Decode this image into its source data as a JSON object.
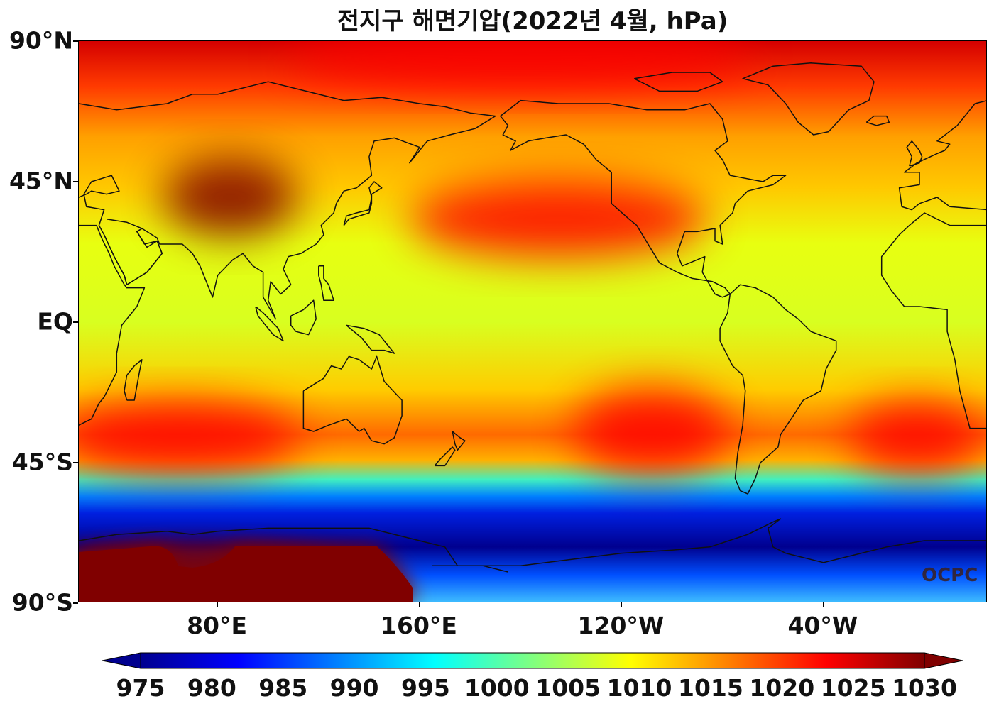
{
  "title": "전지구 해면기압(2022년 4월, hPa)",
  "watermark": "OCPC",
  "latitude_labels": [
    {
      "label": "90°N",
      "lat": 90
    },
    {
      "label": "45°N",
      "lat": 45
    },
    {
      "label": "EQ",
      "lat": 0
    },
    {
      "label": "45°S",
      "lat": -45
    },
    {
      "label": "90°S",
      "lat": -90
    }
  ],
  "longitude_labels": [
    {
      "label": "80°E",
      "lon": 80
    },
    {
      "label": "160°E",
      "lon": 160
    },
    {
      "label": "120°W",
      "lon": 240
    },
    {
      "label": "40°W",
      "lon": 320
    }
  ],
  "map_extent": {
    "lon_min": 25,
    "lon_max": 385,
    "lat_min": -90,
    "lat_max": 90
  },
  "colorbar": {
    "min": 975,
    "max": 1030,
    "extend": "both",
    "tick_labels": [
      "975",
      "980",
      "985",
      "990",
      "995",
      "1000",
      "1005",
      "1010",
      "1015",
      "1020",
      "1025",
      "1030"
    ],
    "colors": [
      "#00008f",
      "#0000ff",
      "#0080ff",
      "#00ffff",
      "#80ff80",
      "#ffff00",
      "#ff8000",
      "#ff0000",
      "#800000"
    ]
  },
  "pressure_features": [
    {
      "name": "north pacific high",
      "lon": 215,
      "lat": 33,
      "value": 1024
    },
    {
      "name": "siberian high",
      "lon": 85,
      "lat": 40,
      "value": 1027
    },
    {
      "name": "south pacific high",
      "lon": 252,
      "lat": -35,
      "value": 1024
    },
    {
      "name": "south indian high",
      "lon": 65,
      "lat": -37,
      "value": 1022
    },
    {
      "name": "south atlantic high",
      "lon": 357,
      "lat": -37,
      "value": 1024
    },
    {
      "name": "antarctic high",
      "lon": 70,
      "lat": -84,
      "value": 1032
    },
    {
      "name": "arctic high",
      "lon": 200,
      "lat": 85,
      "value": 1026
    }
  ]
}
